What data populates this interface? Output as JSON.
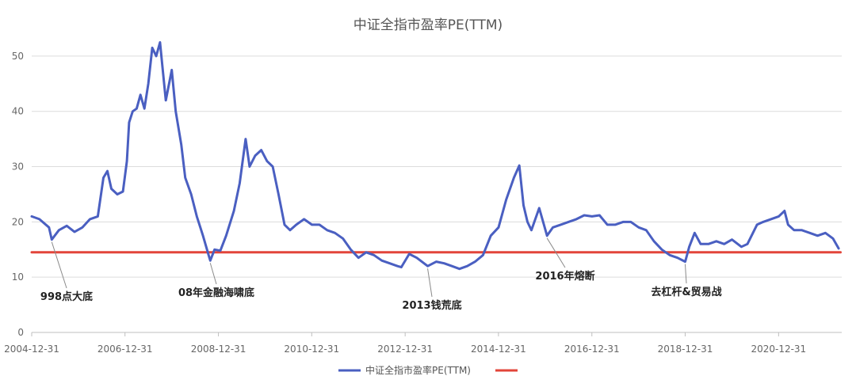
{
  "chart_data": {
    "type": "line",
    "title": "中证全指市盈率PE(TTM)",
    "xlabel": "",
    "ylabel": "",
    "ylim": [
      0,
      55
    ],
    "yticks": [
      0,
      10,
      20,
      30,
      40,
      50
    ],
    "x_tick_labels": [
      "2004-12-31",
      "2006-12-31",
      "2008-12-31",
      "2010-12-31",
      "2012-12-31",
      "2014-12-31",
      "2016-12-31",
      "2018-12-31",
      "2020-12-31"
    ],
    "grid": true,
    "legend_position": "bottom",
    "series": [
      {
        "name": "中证全指市盈率PE(TTM)",
        "color": "#4a5fc1",
        "points": [
          [
            "2004-12-31",
            21.0
          ],
          [
            "2005-03-01",
            20.5
          ],
          [
            "2005-05-15",
            19.0
          ],
          [
            "2005-06-06",
            16.8
          ],
          [
            "2005-08-01",
            18.5
          ],
          [
            "2005-10-01",
            19.3
          ],
          [
            "2005-12-01",
            18.2
          ],
          [
            "2006-02-01",
            19.0
          ],
          [
            "2006-04-01",
            20.5
          ],
          [
            "2006-06-01",
            21.0
          ],
          [
            "2006-07-15",
            28.0
          ],
          [
            "2006-08-15",
            29.2
          ],
          [
            "2006-09-15",
            26.0
          ],
          [
            "2006-11-01",
            25.0
          ],
          [
            "2006-12-15",
            25.5
          ],
          [
            "2007-01-15",
            31.0
          ],
          [
            "2007-02-01",
            38.0
          ],
          [
            "2007-03-01",
            40.0
          ],
          [
            "2007-04-01",
            40.5
          ],
          [
            "2007-05-01",
            43.0
          ],
          [
            "2007-06-01",
            40.5
          ],
          [
            "2007-07-01",
            45.0
          ],
          [
            "2007-08-01",
            51.5
          ],
          [
            "2007-09-01",
            50.0
          ],
          [
            "2007-10-01",
            52.5
          ],
          [
            "2007-10-20",
            48.0
          ],
          [
            "2007-11-15",
            42.0
          ],
          [
            "2008-01-01",
            47.5
          ],
          [
            "2008-02-01",
            40.0
          ],
          [
            "2008-03-15",
            34.0
          ],
          [
            "2008-04-15",
            28.0
          ],
          [
            "2008-06-01",
            25.0
          ],
          [
            "2008-07-15",
            21.0
          ],
          [
            "2008-09-01",
            17.5
          ],
          [
            "2008-10-15",
            14.0
          ],
          [
            "2008-10-28",
            13.0
          ],
          [
            "2008-12-01",
            15.0
          ],
          [
            "2009-01-15",
            14.8
          ],
          [
            "2009-03-01",
            17.5
          ],
          [
            "2009-05-01",
            22.0
          ],
          [
            "2009-06-15",
            27.0
          ],
          [
            "2009-08-01",
            35.0
          ],
          [
            "2009-09-01",
            30.0
          ],
          [
            "2009-10-15",
            32.0
          ],
          [
            "2009-12-01",
            33.0
          ],
          [
            "2010-01-15",
            31.0
          ],
          [
            "2010-03-01",
            30.0
          ],
          [
            "2010-04-15",
            25.0
          ],
          [
            "2010-06-01",
            19.5
          ],
          [
            "2010-07-15",
            18.5
          ],
          [
            "2010-09-01",
            19.5
          ],
          [
            "2010-11-01",
            20.5
          ],
          [
            "2011-01-01",
            19.5
          ],
          [
            "2011-03-01",
            19.5
          ],
          [
            "2011-05-01",
            18.5
          ],
          [
            "2011-07-01",
            18.0
          ],
          [
            "2011-09-01",
            17.0
          ],
          [
            "2011-11-01",
            15.0
          ],
          [
            "2012-01-01",
            13.5
          ],
          [
            "2012-03-01",
            14.5
          ],
          [
            "2012-05-01",
            14.0
          ],
          [
            "2012-07-01",
            13.0
          ],
          [
            "2012-09-01",
            12.5
          ],
          [
            "2012-11-01",
            12.0
          ],
          [
            "2012-12-01",
            11.8
          ],
          [
            "2013-02-01",
            14.2
          ],
          [
            "2013-04-01",
            13.5
          ],
          [
            "2013-06-25",
            12.0
          ],
          [
            "2013-09-01",
            12.8
          ],
          [
            "2013-11-01",
            12.5
          ],
          [
            "2014-01-01",
            12.0
          ],
          [
            "2014-03-01",
            11.5
          ],
          [
            "2014-05-01",
            12.0
          ],
          [
            "2014-07-01",
            12.8
          ],
          [
            "2014-09-01",
            14.0
          ],
          [
            "2014-11-01",
            17.5
          ],
          [
            "2015-01-01",
            19.0
          ],
          [
            "2015-03-01",
            24.0
          ],
          [
            "2015-05-01",
            28.0
          ],
          [
            "2015-06-12",
            30.2
          ],
          [
            "2015-07-15",
            23.0
          ],
          [
            "2015-08-15",
            20.0
          ],
          [
            "2015-09-15",
            18.5
          ],
          [
            "2015-11-15",
            22.5
          ],
          [
            "2016-01-15",
            17.5
          ],
          [
            "2016-03-01",
            19.0
          ],
          [
            "2016-05-01",
            19.5
          ],
          [
            "2016-07-01",
            20.0
          ],
          [
            "2016-09-01",
            20.5
          ],
          [
            "2016-11-01",
            21.2
          ],
          [
            "2017-01-01",
            21.0
          ],
          [
            "2017-03-01",
            21.2
          ],
          [
            "2017-05-01",
            19.5
          ],
          [
            "2017-07-01",
            19.5
          ],
          [
            "2017-09-01",
            20.0
          ],
          [
            "2017-11-01",
            20.0
          ],
          [
            "2018-01-01",
            19.0
          ],
          [
            "2018-03-01",
            18.5
          ],
          [
            "2018-05-01",
            16.5
          ],
          [
            "2018-07-01",
            15.0
          ],
          [
            "2018-09-01",
            14.0
          ],
          [
            "2018-11-01",
            13.5
          ],
          [
            "2018-12-31",
            12.8
          ],
          [
            "2019-02-01",
            15.5
          ],
          [
            "2019-03-15",
            18.0
          ],
          [
            "2019-05-01",
            16.0
          ],
          [
            "2019-07-01",
            16.0
          ],
          [
            "2019-09-01",
            16.5
          ],
          [
            "2019-11-01",
            16.0
          ],
          [
            "2020-01-01",
            16.8
          ],
          [
            "2020-03-15",
            15.5
          ],
          [
            "2020-05-01",
            16.0
          ],
          [
            "2020-07-15",
            19.5
          ],
          [
            "2020-09-01",
            20.0
          ],
          [
            "2020-11-01",
            20.5
          ],
          [
            "2021-01-01",
            21.0
          ],
          [
            "2021-02-15",
            22.0
          ],
          [
            "2021-03-15",
            19.5
          ],
          [
            "2021-05-01",
            18.5
          ],
          [
            "2021-07-01",
            18.5
          ],
          [
            "2021-09-01",
            18.0
          ],
          [
            "2021-11-01",
            17.5
          ],
          [
            "2022-01-01",
            18.0
          ],
          [
            "2022-03-01",
            17.0
          ],
          [
            "2022-04-15",
            15.2
          ]
        ]
      },
      {
        "name": "",
        "color": "#e2453a",
        "points": [
          [
            "2004-12-31",
            14.5
          ],
          [
            "2022-04-30",
            14.5
          ]
        ]
      }
    ],
    "annotations": [
      {
        "text": "998点大底",
        "at": "2005-06-06",
        "value": 16.8
      },
      {
        "text": "08年金融海啸底",
        "at": "2008-10-28",
        "value": 13.0
      },
      {
        "text": "2013钱荒底",
        "at": "2013-06-25",
        "value": 12.0
      },
      {
        "text": "2016年熔断",
        "at": "2016-01-15",
        "value": 17.5
      },
      {
        "text": "去杠杆&贸易战",
        "at": "2018-12-31",
        "value": 12.8
      }
    ]
  }
}
